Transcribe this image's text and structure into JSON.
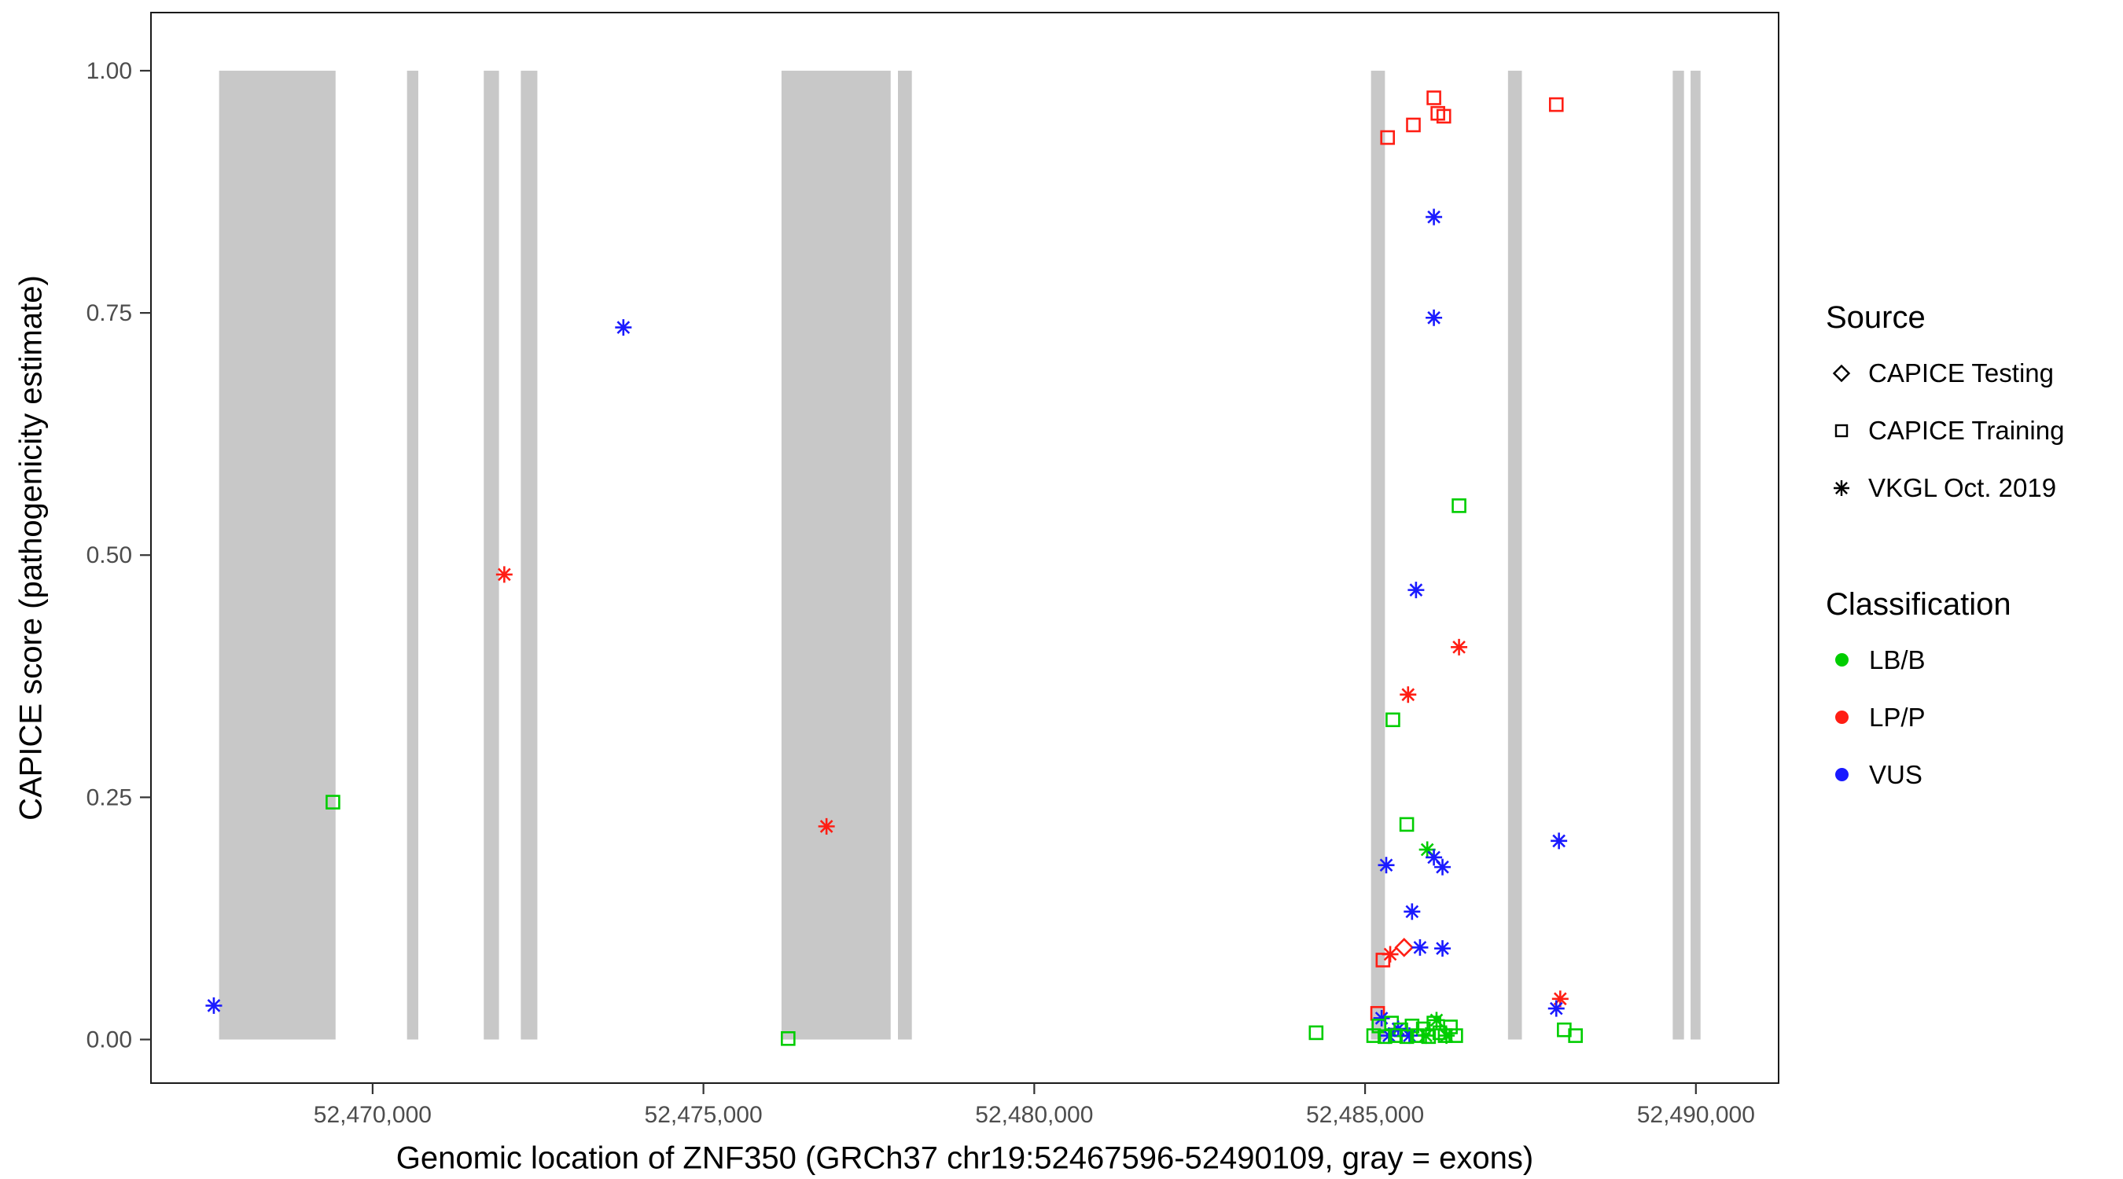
{
  "legend": {
    "source_title": "Source",
    "source_items": [
      {
        "label": "CAPICE Testing",
        "shape": "diamond"
      },
      {
        "label": "CAPICE Training",
        "shape": "square"
      },
      {
        "label": "VKGL Oct. 2019",
        "shape": "asterisk"
      }
    ],
    "classification_title": "Classification",
    "classification_items": [
      {
        "label": "LB/B",
        "color": "#00CD00"
      },
      {
        "label": "LP/P",
        "color": "#FF1E14"
      },
      {
        "label": "VUS",
        "color": "#1A1AFF"
      }
    ]
  },
  "chart_data": {
    "type": "scatter",
    "title": "",
    "xlabel": "Genomic location of ZNF350 (GRCh37 chr19:52467596-52490109, gray = exons)",
    "ylabel": "CAPICE score (pathogenicity estimate)",
    "xlim": [
      52466650,
      52491250
    ],
    "ylim": [
      -0.045,
      1.06
    ],
    "grid": "off",
    "legend_position": "right",
    "x_ticks": [
      {
        "value": 52470000,
        "label": "52,470,000"
      },
      {
        "value": 52475000,
        "label": "52,475,000"
      },
      {
        "value": 52480000,
        "label": "52,480,000"
      },
      {
        "value": 52485000,
        "label": "52,485,000"
      },
      {
        "value": 52490000,
        "label": "52,490,000"
      }
    ],
    "y_ticks": [
      {
        "value": 0.0,
        "label": "0.00"
      },
      {
        "value": 0.25,
        "label": "0.25"
      },
      {
        "value": 0.5,
        "label": "0.50"
      },
      {
        "value": 0.75,
        "label": "0.75"
      },
      {
        "value": 1.0,
        "label": "1.00"
      }
    ],
    "exon_color": "#C8C8C8",
    "exons": [
      [
        52467680,
        52469440
      ],
      [
        52470520,
        52470690
      ],
      [
        52471680,
        52471910
      ],
      [
        52472240,
        52472490
      ],
      [
        52476180,
        52477830
      ],
      [
        52477940,
        52478150
      ],
      [
        52485090,
        52485300
      ],
      [
        52487160,
        52487370
      ],
      [
        52489650,
        52489820
      ],
      [
        52489920,
        52490070
      ]
    ],
    "source_shapes": {
      "CAPICE Testing": "diamond",
      "CAPICE Training": "square",
      "VKGL Oct. 2019": "asterisk"
    },
    "classification_colors": {
      "LB/B": "#00CD00",
      "LP/P": "#FF1E14",
      "VUS": "#1A1AFF"
    },
    "points": [
      {
        "x": 52467600,
        "y": 0.035,
        "source": "VKGL Oct. 2019",
        "classification": "VUS"
      },
      {
        "x": 52469400,
        "y": 0.245,
        "source": "CAPICE Training",
        "classification": "LB/B"
      },
      {
        "x": 52471990,
        "y": 0.48,
        "source": "VKGL Oct. 2019",
        "classification": "LP/P"
      },
      {
        "x": 52473790,
        "y": 0.735,
        "source": "VKGL Oct. 2019",
        "classification": "VUS"
      },
      {
        "x": 52476280,
        "y": 0.001,
        "source": "CAPICE Training",
        "classification": "LB/B"
      },
      {
        "x": 52476860,
        "y": 0.22,
        "source": "VKGL Oct. 2019",
        "classification": "LP/P"
      },
      {
        "x": 52484260,
        "y": 0.007,
        "source": "CAPICE Training",
        "classification": "LB/B"
      },
      {
        "x": 52485340,
        "y": 0.931,
        "source": "CAPICE Training",
        "classification": "LP/P"
      },
      {
        "x": 52485730,
        "y": 0.944,
        "source": "CAPICE Training",
        "classification": "LP/P"
      },
      {
        "x": 52486040,
        "y": 0.972,
        "source": "CAPICE Training",
        "classification": "LP/P"
      },
      {
        "x": 52486100,
        "y": 0.956,
        "source": "CAPICE Training",
        "classification": "LP/P"
      },
      {
        "x": 52486190,
        "y": 0.953,
        "source": "CAPICE Training",
        "classification": "LP/P"
      },
      {
        "x": 52487890,
        "y": 0.965,
        "source": "CAPICE Training",
        "classification": "LP/P"
      },
      {
        "x": 52486040,
        "y": 0.849,
        "source": "VKGL Oct. 2019",
        "classification": "VUS"
      },
      {
        "x": 52486040,
        "y": 0.745,
        "source": "VKGL Oct. 2019",
        "classification": "VUS"
      },
      {
        "x": 52486420,
        "y": 0.551,
        "source": "CAPICE Training",
        "classification": "LB/B"
      },
      {
        "x": 52485770,
        "y": 0.464,
        "source": "VKGL Oct. 2019",
        "classification": "VUS"
      },
      {
        "x": 52486420,
        "y": 0.405,
        "source": "VKGL Oct. 2019",
        "classification": "LP/P"
      },
      {
        "x": 52485650,
        "y": 0.356,
        "source": "VKGL Oct. 2019",
        "classification": "LP/P"
      },
      {
        "x": 52485420,
        "y": 0.33,
        "source": "CAPICE Training",
        "classification": "LB/B"
      },
      {
        "x": 52485630,
        "y": 0.222,
        "source": "CAPICE Training",
        "classification": "LB/B"
      },
      {
        "x": 52487930,
        "y": 0.205,
        "source": "VKGL Oct. 2019",
        "classification": "VUS"
      },
      {
        "x": 52485940,
        "y": 0.196,
        "source": "VKGL Oct. 2019",
        "classification": "LB/B"
      },
      {
        "x": 52486040,
        "y": 0.188,
        "source": "VKGL Oct. 2019",
        "classification": "VUS"
      },
      {
        "x": 52485320,
        "y": 0.18,
        "source": "VKGL Oct. 2019",
        "classification": "VUS"
      },
      {
        "x": 52486170,
        "y": 0.178,
        "source": "VKGL Oct. 2019",
        "classification": "VUS"
      },
      {
        "x": 52485710,
        "y": 0.132,
        "source": "VKGL Oct. 2019",
        "classification": "VUS"
      },
      {
        "x": 52485590,
        "y": 0.095,
        "source": "CAPICE Testing",
        "classification": "LP/P"
      },
      {
        "x": 52485830,
        "y": 0.095,
        "source": "VKGL Oct. 2019",
        "classification": "VUS"
      },
      {
        "x": 52486170,
        "y": 0.094,
        "source": "VKGL Oct. 2019",
        "classification": "VUS"
      },
      {
        "x": 52485380,
        "y": 0.088,
        "source": "VKGL Oct. 2019",
        "classification": "LP/P"
      },
      {
        "x": 52485270,
        "y": 0.082,
        "source": "CAPICE Training",
        "classification": "LP/P"
      },
      {
        "x": 52487950,
        "y": 0.042,
        "source": "VKGL Oct. 2019",
        "classification": "LP/P"
      },
      {
        "x": 52487890,
        "y": 0.032,
        "source": "VKGL Oct. 2019",
        "classification": "VUS"
      },
      {
        "x": 52485190,
        "y": 0.027,
        "source": "CAPICE Training",
        "classification": "LP/P"
      },
      {
        "x": 52485250,
        "y": 0.022,
        "source": "VKGL Oct. 2019",
        "classification": "VUS"
      },
      {
        "x": 52486080,
        "y": 0.02,
        "source": "VKGL Oct. 2019",
        "classification": "LB/B"
      },
      {
        "x": 52485400,
        "y": 0.017,
        "source": "CAPICE Training",
        "classification": "LB/B"
      },
      {
        "x": 52486040,
        "y": 0.017,
        "source": "CAPICE Training",
        "classification": "LB/B"
      },
      {
        "x": 52485210,
        "y": 0.014,
        "source": "CAPICE Training",
        "classification": "LB/B"
      },
      {
        "x": 52485710,
        "y": 0.014,
        "source": "CAPICE Training",
        "classification": "LB/B"
      },
      {
        "x": 52486290,
        "y": 0.013,
        "source": "CAPICE Training",
        "classification": "LB/B"
      },
      {
        "x": 52485500,
        "y": 0.011,
        "source": "VKGL Oct. 2019",
        "classification": "VUS"
      },
      {
        "x": 52485880,
        "y": 0.011,
        "source": "CAPICE Training",
        "classification": "LB/B"
      },
      {
        "x": 52488010,
        "y": 0.01,
        "source": "CAPICE Training",
        "classification": "LB/B"
      },
      {
        "x": 52485540,
        "y": 0.01,
        "source": "CAPICE Training",
        "classification": "LB/B"
      },
      {
        "x": 52486130,
        "y": 0.007,
        "source": "CAPICE Training",
        "classification": "LB/B"
      },
      {
        "x": 52485130,
        "y": 0.004,
        "source": "CAPICE Training",
        "classification": "LB/B"
      },
      {
        "x": 52485360,
        "y": 0.004,
        "source": "VKGL Oct. 2019",
        "classification": "VUS"
      },
      {
        "x": 52485460,
        "y": 0.004,
        "source": "CAPICE Training",
        "classification": "LB/B"
      },
      {
        "x": 52485670,
        "y": 0.004,
        "source": "VKGL Oct. 2019",
        "classification": "VUS"
      },
      {
        "x": 52485790,
        "y": 0.004,
        "source": "CAPICE Training",
        "classification": "LB/B"
      },
      {
        "x": 52485920,
        "y": 0.004,
        "source": "VKGL Oct. 2019",
        "classification": "LB/B"
      },
      {
        "x": 52486210,
        "y": 0.004,
        "source": "CAPICE Training",
        "classification": "LB/B"
      },
      {
        "x": 52486230,
        "y": 0.004,
        "source": "VKGL Oct. 2019",
        "classification": "LB/B"
      },
      {
        "x": 52486370,
        "y": 0.004,
        "source": "CAPICE Training",
        "classification": "LB/B"
      },
      {
        "x": 52488180,
        "y": 0.004,
        "source": "CAPICE Training",
        "classification": "LB/B"
      },
      {
        "x": 52485300,
        "y": 0.003,
        "source": "CAPICE Training",
        "classification": "LB/B"
      },
      {
        "x": 52485630,
        "y": 0.003,
        "source": "CAPICE Training",
        "classification": "LB/B"
      },
      {
        "x": 52485960,
        "y": 0.003,
        "source": "CAPICE Training",
        "classification": "LB/B"
      }
    ]
  }
}
